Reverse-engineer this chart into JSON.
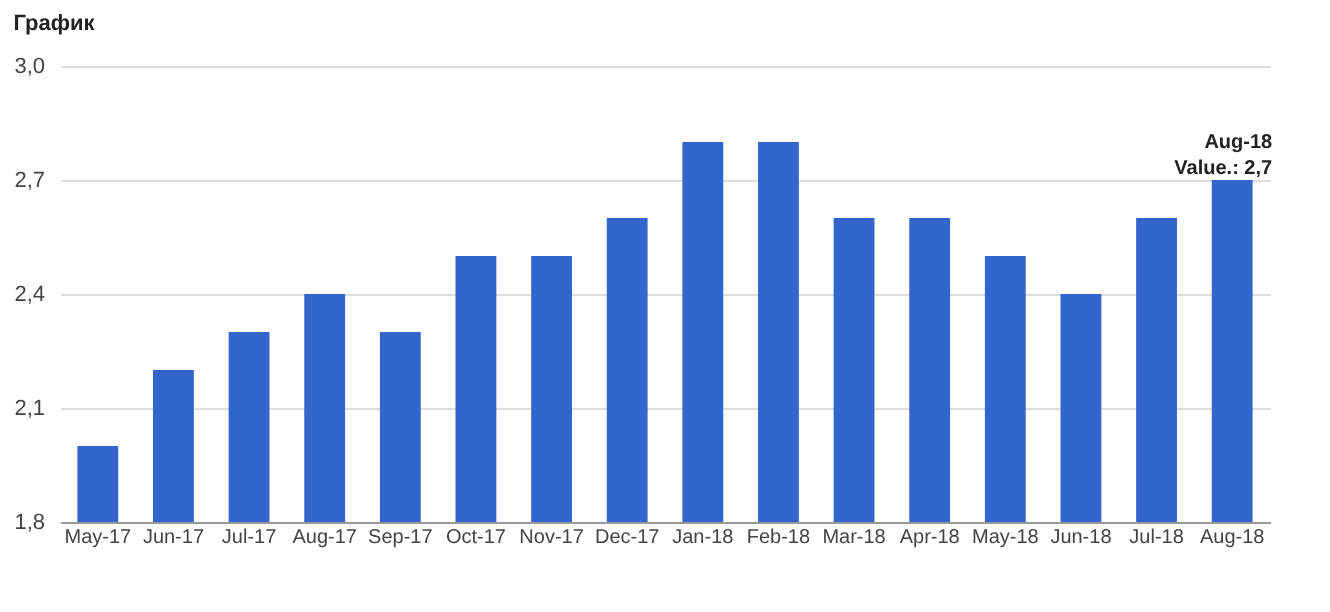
{
  "chart_data": {
    "type": "bar",
    "title": "График",
    "categories": [
      "May-17",
      "Jun-17",
      "Jul-17",
      "Aug-17",
      "Sep-17",
      "Oct-17",
      "Nov-17",
      "Dec-17",
      "Jan-18",
      "Feb-18",
      "Mar-18",
      "Apr-18",
      "May-18",
      "Jun-18",
      "Jul-18",
      "Aug-18"
    ],
    "values": [
      2.0,
      2.2,
      2.3,
      2.4,
      2.3,
      2.5,
      2.5,
      2.6,
      2.8,
      2.8,
      2.6,
      2.6,
      2.5,
      2.4,
      2.6,
      2.7
    ],
    "color": "#3366cc",
    "ylim": [
      1.8,
      3.0
    ],
    "yticks": [
      {
        "value": 1.8,
        "label": "1,8"
      },
      {
        "value": 2.1,
        "label": "2,1"
      },
      {
        "value": 2.4,
        "label": "2,4"
      },
      {
        "value": 2.7,
        "label": "2,7"
      },
      {
        "value": 3.0,
        "label": "3,0"
      }
    ],
    "grid": "y",
    "annotations": [
      {
        "text": "Aug-18\nValue.: 2,7",
        "x": "Aug-18",
        "y": 2.7
      }
    ]
  }
}
